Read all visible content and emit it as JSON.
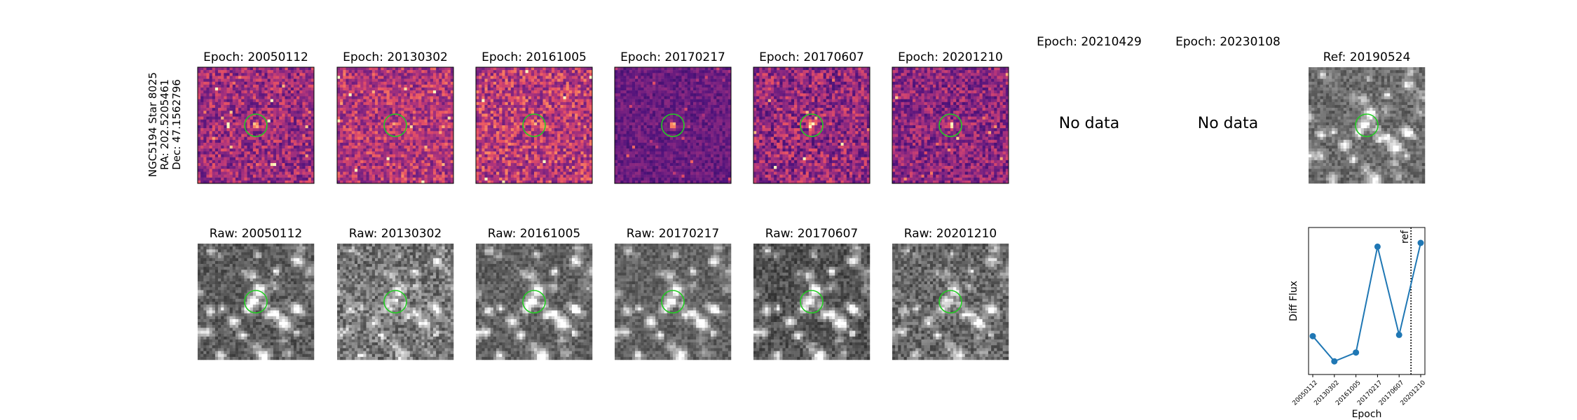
{
  "side_label": [
    "NGC5194 Star 8025",
    "RA: 202.5205461",
    "Dec: 47.1562796"
  ],
  "difference_row": {
    "panels": [
      {
        "title": "Epoch: 20050112",
        "has_data": true
      },
      {
        "title": "Epoch: 20130302",
        "has_data": true
      },
      {
        "title": "Epoch: 20161005",
        "has_data": true
      },
      {
        "title": "Epoch: 20170217",
        "has_data": true
      },
      {
        "title": "Epoch: 20170607",
        "has_data": true
      },
      {
        "title": "Epoch: 20201210",
        "has_data": true
      },
      {
        "title": "Epoch: 20210429",
        "has_data": false,
        "message": "No data"
      },
      {
        "title": "Epoch: 20230108",
        "has_data": false,
        "message": "No data"
      }
    ],
    "colormap": "magma",
    "reference": {
      "title": "Ref: 20190524",
      "colormap": "gray"
    }
  },
  "raw_row": {
    "panels": [
      {
        "title": "Raw: 20050112"
      },
      {
        "title": "Raw: 20130302"
      },
      {
        "title": "Raw: 20161005"
      },
      {
        "title": "Raw: 20170217"
      },
      {
        "title": "Raw: 20170607"
      },
      {
        "title": "Raw: 20201210"
      }
    ],
    "colormap": "gray"
  },
  "aperture_color": "#22cc22",
  "chart_data": {
    "type": "line",
    "title": "",
    "xlabel": "Epoch",
    "ylabel": "Diff Flux",
    "categories": [
      "20050112",
      "20130302",
      "20161005",
      "20170217",
      "20170607",
      "20201210"
    ],
    "series": [
      {
        "values": [
          0.26,
          0.06,
          0.13,
          0.97,
          0.27,
          1.0
        ],
        "color": "#1f77b4"
      }
    ],
    "reference_line": {
      "label": "ref",
      "position_between": [
        "20170607",
        "20201210"
      ],
      "style": "dotted"
    },
    "y_ticks_shown": false,
    "grid": false
  }
}
